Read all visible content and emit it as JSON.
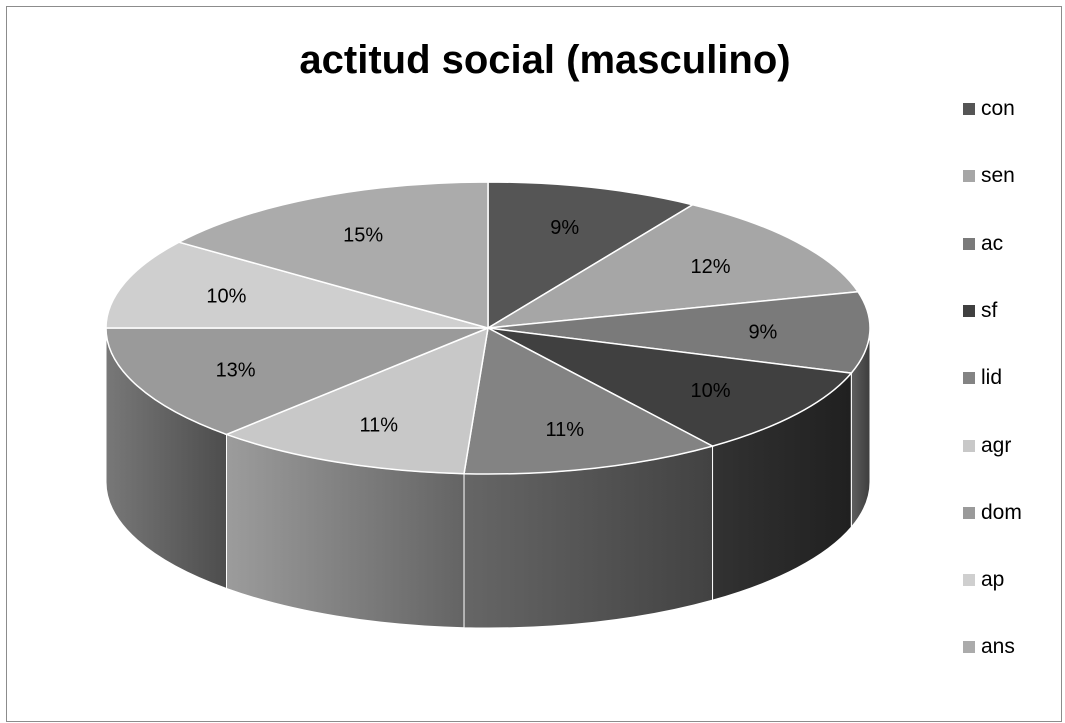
{
  "chart_data": {
    "type": "pie",
    "title": "actitud social (masculino)",
    "legend_position": "right",
    "slices": [
      {
        "name": "con",
        "value": 9,
        "label": "9%",
        "color": "#555555"
      },
      {
        "name": "sen",
        "value": 12,
        "label": "12%",
        "color": "#a6a6a6"
      },
      {
        "name": "ac",
        "value": 9,
        "label": "9%",
        "color": "#7a7a7a"
      },
      {
        "name": "sf",
        "value": 10,
        "label": "10%",
        "color": "#404040"
      },
      {
        "name": "lid",
        "value": 11,
        "label": "11%",
        "color": "#838383"
      },
      {
        "name": "agr",
        "value": 11,
        "label": "11%",
        "color": "#c8c8c8"
      },
      {
        "name": "dom",
        "value": 13,
        "label": "13%",
        "color": "#9a9a9a"
      },
      {
        "name": "ap",
        "value": 10,
        "label": "10%",
        "color": "#cfcfcf"
      },
      {
        "name": "ans",
        "value": 15,
        "label": "15%",
        "color": "#ababab"
      }
    ]
  }
}
